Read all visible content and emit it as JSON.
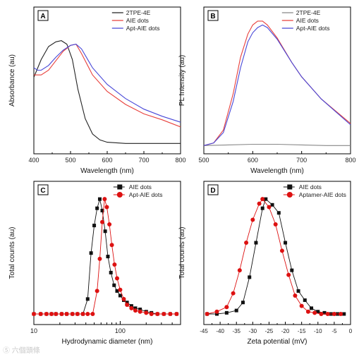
{
  "chart_data": [
    {
      "panel": "A",
      "type": "line",
      "xlabel": "Wavelength (nm)",
      "ylabel": "Absorbance (au)",
      "xlim": [
        400,
        800
      ],
      "x_ticks": [
        "400",
        "500",
        "600",
        "700",
        "800"
      ],
      "ylim": [
        0,
        1
      ],
      "y_tick_labels": "none",
      "legend_position": "top-right",
      "series": [
        {
          "name": "2TPE-4E",
          "color": "#222222",
          "x": [
            400,
            420,
            440,
            460,
            475,
            490,
            505,
            520,
            540,
            560,
            580,
            600,
            650,
            700,
            800
          ],
          "y": [
            0.6,
            0.75,
            0.86,
            0.9,
            0.91,
            0.88,
            0.75,
            0.5,
            0.25,
            0.12,
            0.07,
            0.05,
            0.04,
            0.04,
            0.04
          ]
        },
        {
          "name": "AIE dots",
          "color": "#e8403c",
          "x": [
            400,
            410,
            420,
            440,
            460,
            480,
            500,
            515,
            530,
            560,
            600,
            650,
            700,
            750,
            800
          ],
          "y": [
            0.62,
            0.62,
            0.62,
            0.66,
            0.74,
            0.82,
            0.87,
            0.88,
            0.8,
            0.62,
            0.48,
            0.37,
            0.29,
            0.24,
            0.18
          ]
        },
        {
          "name": "Apt-AIE dots",
          "color": "#4848d8",
          "x": [
            400,
            410,
            420,
            440,
            460,
            480,
            500,
            515,
            530,
            560,
            600,
            650,
            700,
            750,
            800
          ],
          "y": [
            0.68,
            0.66,
            0.66,
            0.7,
            0.77,
            0.83,
            0.87,
            0.88,
            0.84,
            0.68,
            0.54,
            0.42,
            0.33,
            0.27,
            0.22
          ]
        }
      ]
    },
    {
      "panel": "B",
      "type": "line",
      "xlabel": "Wavelength (nm)",
      "ylabel": "PL Intensity (au)",
      "xlim": [
        500,
        800
      ],
      "x_ticks": [
        "500",
        "600",
        "700",
        "800"
      ],
      "ylim": [
        0,
        1
      ],
      "y_tick_labels": "none",
      "legend_position": "top-right",
      "series": [
        {
          "name": "2TPE-4E",
          "color": "#888888",
          "x": [
            500,
            550,
            600,
            620,
            650,
            700,
            750,
            800
          ],
          "y": [
            0.02,
            0.025,
            0.03,
            0.03,
            0.03,
            0.025,
            0.02,
            0.02
          ]
        },
        {
          "name": "AIE dots",
          "color": "#e8403c",
          "x": [
            500,
            520,
            540,
            560,
            575,
            590,
            600,
            610,
            620,
            630,
            650,
            680,
            700,
            740,
            800
          ],
          "y": [
            0.02,
            0.04,
            0.14,
            0.42,
            0.7,
            0.88,
            0.95,
            0.98,
            0.98,
            0.95,
            0.85,
            0.66,
            0.55,
            0.38,
            0.19
          ]
        },
        {
          "name": "Apt-AIE dots",
          "color": "#4848d8",
          "x": [
            500,
            520,
            540,
            560,
            575,
            590,
            600,
            610,
            620,
            630,
            650,
            680,
            700,
            740,
            800
          ],
          "y": [
            0.02,
            0.04,
            0.12,
            0.36,
            0.62,
            0.82,
            0.89,
            0.93,
            0.95,
            0.93,
            0.84,
            0.66,
            0.55,
            0.38,
            0.18
          ]
        }
      ]
    },
    {
      "panel": "C",
      "type": "scatter",
      "xlabel": "Hydrodynamic diameter (nm)",
      "ylabel": "Total counts (au)",
      "x_scale": "log",
      "xlim": [
        10,
        500
      ],
      "x_ticks": [
        "10",
        "100"
      ],
      "ylim": [
        0,
        1
      ],
      "y_tick_labels": "none",
      "legend_position": "top-right",
      "series": [
        {
          "name": "AIE dots",
          "color": "#111111",
          "marker": "square",
          "x": [
            10,
            12,
            14,
            16,
            18,
            21,
            24,
            28,
            32,
            37,
            42,
            46,
            50,
            54,
            58,
            62,
            67,
            72,
            78,
            85,
            92,
            100,
            110,
            120,
            135,
            150,
            170,
            200,
            230,
            270,
            320,
            380,
            450
          ],
          "y": [
            0,
            0,
            0,
            0,
            0,
            0,
            0,
            0,
            0,
            0,
            0.13,
            0.53,
            0.77,
            0.92,
            1.0,
            0.9,
            0.72,
            0.5,
            0.36,
            0.25,
            0.2,
            0.16,
            0.12,
            0.1,
            0.07,
            0.05,
            0.04,
            0.02,
            0.01,
            0,
            0,
            0,
            0
          ]
        },
        {
          "name": "Apt-AIE dots",
          "color": "#dd1111",
          "marker": "circle",
          "x": [
            10,
            12,
            14,
            16,
            18,
            21,
            24,
            28,
            32,
            37,
            42,
            48,
            54,
            58,
            62,
            66,
            70,
            75,
            80,
            86,
            92,
            100,
            110,
            120,
            135,
            150,
            170,
            200,
            230,
            270,
            320,
            380,
            450
          ],
          "y": [
            0,
            0,
            0,
            0,
            0,
            0,
            0,
            0,
            0,
            0,
            0,
            0,
            0.2,
            0.48,
            0.8,
            1.0,
            0.93,
            0.78,
            0.6,
            0.43,
            0.31,
            0.21,
            0.13,
            0.08,
            0.05,
            0.03,
            0.02,
            0.01,
            0,
            0,
            0,
            0,
            0
          ]
        }
      ]
    },
    {
      "panel": "D",
      "type": "scatter",
      "xlabel": "Zeta potential (mV)",
      "ylabel": "Total counts (au)",
      "xlim": [
        -45,
        0
      ],
      "x_ticks": [
        "-45",
        "-40",
        "-35",
        "-30",
        "-25",
        "-20",
        "-15",
        "-10",
        "-5",
        "0"
      ],
      "ylim": [
        0,
        1
      ],
      "y_tick_labels": "none",
      "legend_position": "top-right",
      "series": [
        {
          "name": "AIE dots",
          "color": "#111111",
          "marker": "square",
          "x": [
            -44,
            -41,
            -38,
            -35,
            -33,
            -31,
            -29,
            -27,
            -26,
            -24,
            -22,
            -20,
            -18,
            -16,
            -14,
            -12,
            -10,
            -8,
            -6,
            -4,
            -2
          ],
          "y": [
            0,
            0,
            0.01,
            0.03,
            0.1,
            0.32,
            0.62,
            0.92,
            1.0,
            0.95,
            0.88,
            0.62,
            0.38,
            0.2,
            0.12,
            0.05,
            0.02,
            0.01,
            0,
            0,
            0
          ]
        },
        {
          "name": "Aptamer-AIE dots",
          "color": "#dd1111",
          "marker": "circle",
          "x": [
            -44,
            -41,
            -38,
            -36,
            -34,
            -32,
            -30,
            -28,
            -27,
            -25,
            -23,
            -21,
            -19,
            -17,
            -15,
            -13,
            -11,
            -9,
            -7,
            -5,
            -3
          ],
          "y": [
            0,
            0.02,
            0.06,
            0.18,
            0.38,
            0.62,
            0.82,
            0.96,
            1.0,
            0.93,
            0.78,
            0.55,
            0.34,
            0.16,
            0.07,
            0.02,
            0.01,
            0,
            0,
            0,
            0
          ]
        }
      ]
    }
  ],
  "watermark": "⑤ 六個頭條"
}
